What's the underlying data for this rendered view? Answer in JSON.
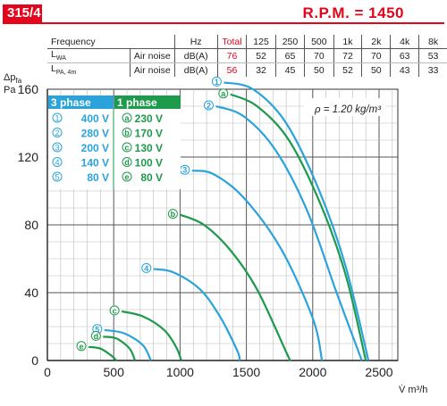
{
  "header": {
    "model": "315/4",
    "rpm": "R.P.M. = 1450"
  },
  "noise_table": {
    "columns": [
      "Frequency",
      "",
      "Hz",
      "Total",
      "125",
      "250",
      "500",
      "1k",
      "2k",
      "4k",
      "8k"
    ],
    "rows": [
      {
        "label_main": "L",
        "label_sub": "WA",
        "desc": "Air noise",
        "unit": "dB(A)",
        "total": "76",
        "values": [
          "52",
          "65",
          "70",
          "72",
          "70",
          "63",
          "53"
        ]
      },
      {
        "label_main": "L",
        "label_sub": "PA, 4m",
        "desc": "Air noise",
        "unit": "dB(A)",
        "total": "56",
        "values": [
          "32",
          "45",
          "50",
          "52",
          "50",
          "43",
          "33"
        ]
      }
    ]
  },
  "colors": {
    "blue": "#2aa3dc",
    "green": "#1e9a4c",
    "red": "#e3051b"
  },
  "chart_data": {
    "type": "line",
    "ylabel_main": "Δp",
    "ylabel_sub": "fa",
    "yunit": "Pa",
    "xlabel": "V̇ m³/h",
    "xlim": [
      0,
      2500
    ],
    "ylim": [
      0,
      160
    ],
    "xticks": [
      0,
      500,
      1000,
      1500,
      2000,
      2500
    ],
    "yticks": [
      0,
      40,
      80,
      120,
      160
    ],
    "grid": true,
    "density_note": "ρ = 1.20 kg/m³",
    "legend": {
      "three_phase": {
        "title": "3 phase",
        "items": [
          {
            "marker": "1",
            "voltage": "400 V"
          },
          {
            "marker": "2",
            "voltage": "280 V"
          },
          {
            "marker": "3",
            "voltage": "200 V"
          },
          {
            "marker": "4",
            "voltage": "140 V"
          },
          {
            "marker": "5",
            "voltage": "80 V"
          }
        ]
      },
      "one_phase": {
        "title": "1 phase",
        "items": [
          {
            "marker": "a",
            "voltage": "230 V"
          },
          {
            "marker": "b",
            "voltage": "170 V"
          },
          {
            "marker": "c",
            "voltage": "130 V"
          },
          {
            "marker": "d",
            "voltage": "100 V"
          },
          {
            "marker": "e",
            "voltage": "80 V"
          }
        ]
      }
    },
    "series": [
      {
        "marker": "1",
        "phase": "3",
        "points": [
          [
            1330,
            164
          ],
          [
            1550,
            160
          ],
          [
            1800,
            140
          ],
          [
            2050,
            100
          ],
          [
            2250,
            55
          ],
          [
            2420,
            0
          ]
        ]
      },
      {
        "marker": "a",
        "phase": "1",
        "points": [
          [
            1380,
            157
          ],
          [
            1580,
            150
          ],
          [
            1820,
            130
          ],
          [
            2060,
            92
          ],
          [
            2250,
            50
          ],
          [
            2400,
            0
          ]
        ]
      },
      {
        "marker": "2",
        "phase": "3",
        "points": [
          [
            1270,
            150
          ],
          [
            1480,
            144
          ],
          [
            1720,
            124
          ],
          [
            1960,
            88
          ],
          [
            2180,
            40
          ],
          [
            2370,
            0
          ]
        ]
      },
      {
        "marker": "3",
        "phase": "3",
        "points": [
          [
            1090,
            112
          ],
          [
            1250,
            110
          ],
          [
            1480,
            96
          ],
          [
            1760,
            66
          ],
          [
            2000,
            25
          ],
          [
            2070,
            0
          ]
        ]
      },
      {
        "marker": "b",
        "phase": "1",
        "points": [
          [
            1000,
            86
          ],
          [
            1180,
            80
          ],
          [
            1380,
            65
          ],
          [
            1580,
            42
          ],
          [
            1800,
            5
          ],
          [
            1830,
            0
          ]
        ]
      },
      {
        "marker": "4",
        "phase": "3",
        "points": [
          [
            800,
            54
          ],
          [
            950,
            52
          ],
          [
            1150,
            42
          ],
          [
            1300,
            26
          ],
          [
            1430,
            6
          ],
          [
            1450,
            0
          ]
        ]
      },
      {
        "marker": "c",
        "phase": "1",
        "points": [
          [
            560,
            29
          ],
          [
            720,
            26
          ],
          [
            880,
            18
          ],
          [
            970,
            8
          ],
          [
            1010,
            0
          ]
        ]
      },
      {
        "marker": "5",
        "phase": "3",
        "points": [
          [
            430,
            18
          ],
          [
            580,
            16
          ],
          [
            720,
            9
          ],
          [
            780,
            0
          ]
        ]
      },
      {
        "marker": "d",
        "phase": "1",
        "points": [
          [
            420,
            14
          ],
          [
            520,
            13
          ],
          [
            620,
            7
          ],
          [
            660,
            0
          ]
        ]
      },
      {
        "marker": "e",
        "phase": "1",
        "points": [
          [
            310,
            8
          ],
          [
            400,
            7
          ],
          [
            480,
            3
          ],
          [
            520,
            0
          ]
        ]
      }
    ]
  }
}
